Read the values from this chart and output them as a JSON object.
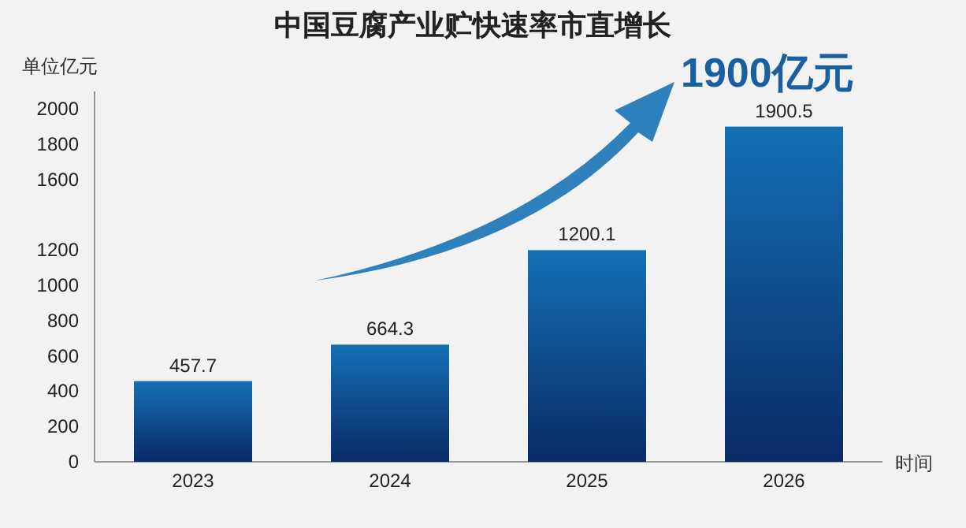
{
  "chart_data": {
    "type": "bar",
    "title": "中国豆腐产业贮快速率市直增长",
    "xlabel": "时间",
    "ylabel": "单位亿元",
    "categories": [
      "2023",
      "2024",
      "2025",
      "2026"
    ],
    "values": [
      457.7,
      664.3,
      1200.1,
      1900.5
    ],
    "color": "#1470b4",
    "ylim": [
      0,
      2100
    ],
    "yticks": [
      0,
      200,
      400,
      600,
      800,
      1000,
      1200,
      1600,
      1800,
      2000
    ],
    "data_labels": true,
    "grid": false,
    "annotations": [
      "1900亿元"
    ]
  }
}
